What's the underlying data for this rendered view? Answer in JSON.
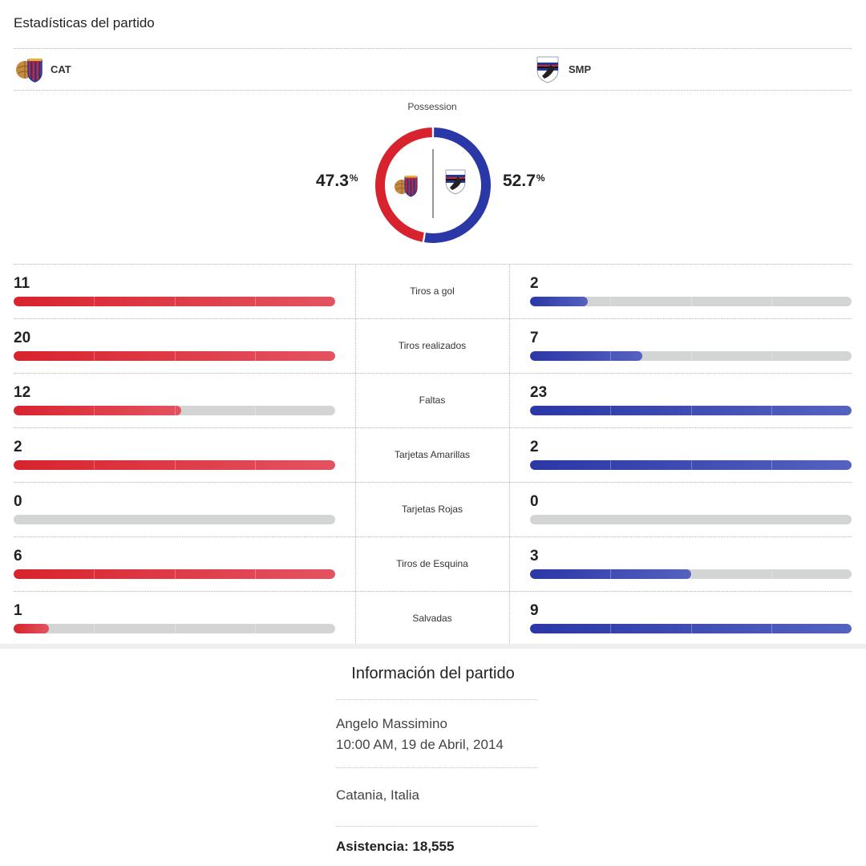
{
  "header": {
    "title": "Estadísticas del partido"
  },
  "teams": {
    "home": {
      "abbr": "CAT",
      "logo": "catania-crest-icon",
      "color": "#d8232e"
    },
    "away": {
      "abbr": "SMP",
      "logo": "sampdoria-crest-icon",
      "color": "#2a37a6"
    }
  },
  "possession": {
    "label": "Possession",
    "home_value": "47.3",
    "away_value": "52.7",
    "unit": "%",
    "home_fraction": 0.473,
    "away_fraction": 0.527
  },
  "stats": [
    {
      "label": "Tiros a gol",
      "home": "11",
      "away": "2",
      "home_fill": 1.0,
      "away_fill": 0.18
    },
    {
      "label": "Tiros realizados",
      "home": "20",
      "away": "7",
      "home_fill": 1.0,
      "away_fill": 0.35
    },
    {
      "label": "Faltas",
      "home": "12",
      "away": "23",
      "home_fill": 0.52,
      "away_fill": 1.0
    },
    {
      "label": "Tarjetas Amarillas",
      "home": "2",
      "away": "2",
      "home_fill": 1.0,
      "away_fill": 1.0
    },
    {
      "label": "Tarjetas Rojas",
      "home": "0",
      "away": "0",
      "home_fill": 0.0,
      "away_fill": 0.0
    },
    {
      "label": "Tiros de Esquina",
      "home": "6",
      "away": "3",
      "home_fill": 1.0,
      "away_fill": 0.5
    },
    {
      "label": "Salvadas",
      "home": "1",
      "away": "9",
      "home_fill": 0.11,
      "away_fill": 1.0
    }
  ],
  "match_info": {
    "title": "Información del partido",
    "venue": "Angelo Massimino",
    "datetime": "10:00 AM, 19 de Abril, 2014",
    "location": "Catania, Italia",
    "attendance": "Asistencia: 18,555"
  }
}
